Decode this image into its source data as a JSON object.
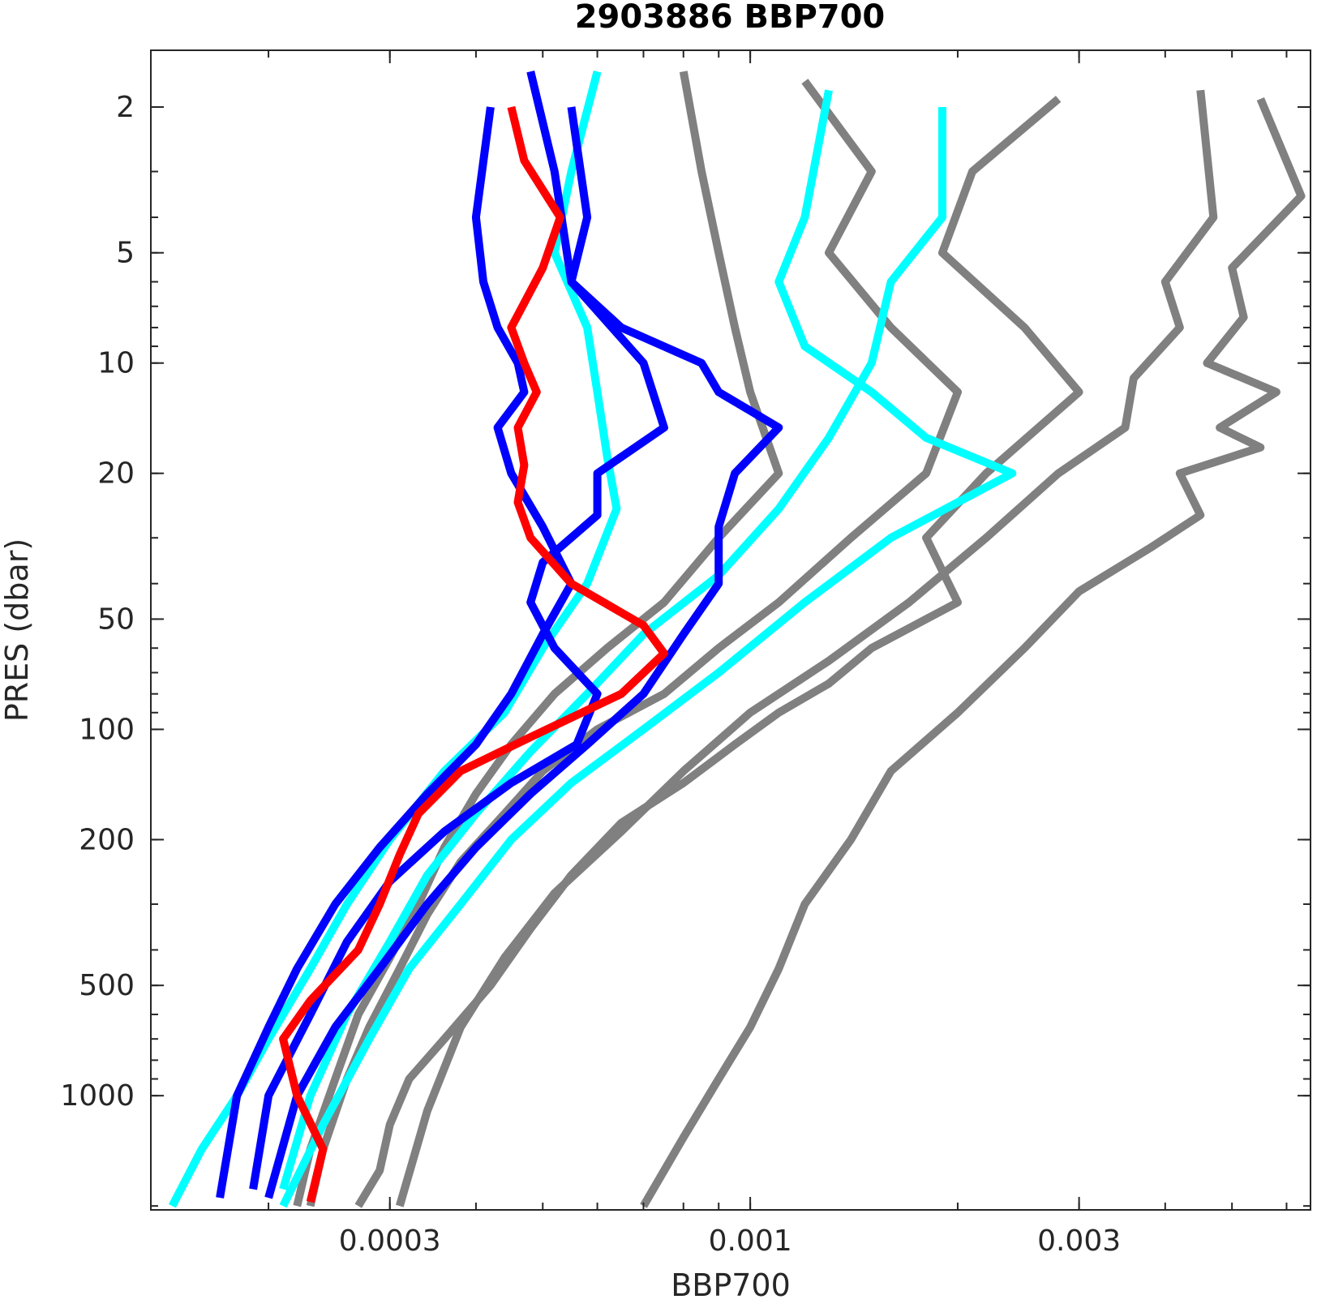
{
  "chart_data": {
    "type": "line",
    "title": "2903886 BBP700",
    "xlabel": "BBP700",
    "ylabel": "PRES (dbar)",
    "x_scale": "log",
    "y_scale": "log",
    "y_reversed": true,
    "xlim": [
      0.000135,
      0.0065
    ],
    "ylim": [
      1.4,
      2050
    ],
    "x_ticks": [
      {
        "value": 0.0003,
        "label": "0.0003"
      },
      {
        "value": 0.001,
        "label": "0.001"
      },
      {
        "value": 0.003,
        "label": "0.003"
      }
    ],
    "y_ticks": [
      {
        "value": 2,
        "label": "2"
      },
      {
        "value": 5,
        "label": "5"
      },
      {
        "value": 10,
        "label": "10"
      },
      {
        "value": 20,
        "label": "20"
      },
      {
        "value": 50,
        "label": "50"
      },
      {
        "value": 100,
        "label": "100"
      },
      {
        "value": 200,
        "label": "200"
      },
      {
        "value": 500,
        "label": "500"
      },
      {
        "value": 1000,
        "label": "1000"
      }
    ],
    "grid": false,
    "legend": "none",
    "colors": {
      "gray": "#808080",
      "cyan": "#00ffff",
      "blue": "#0000ff",
      "red": "#ff0000",
      "axes": "#262626"
    },
    "series": [
      {
        "color": "gray",
        "x": [
          0.0028,
          0.0021,
          0.0019,
          0.0025,
          0.003,
          0.0022,
          0.0018,
          0.002,
          0.0015,
          0.0013,
          0.0011,
          0.00095,
          0.0008,
          0.00065,
          0.00055,
          0.00048,
          0.00042,
          0.00036,
          0.00032,
          0.0003,
          0.00029,
          0.00027
        ],
        "y": [
          1.9,
          3,
          5,
          8,
          12,
          20,
          30,
          45,
          60,
          75,
          90,
          110,
          140,
          180,
          250,
          350,
          500,
          700,
          900,
          1200,
          1600,
          2000
        ]
      },
      {
        "color": "gray",
        "x": [
          0.0055,
          0.0063,
          0.005,
          0.0052,
          0.0046,
          0.0058,
          0.0048,
          0.0055,
          0.0042,
          0.0045,
          0.0038,
          0.003,
          0.0025,
          0.002,
          0.0016,
          0.0014,
          0.0012,
          0.0011,
          0.001,
          0.0009,
          0.0008,
          0.0007
        ],
        "y": [
          1.9,
          3.5,
          5.5,
          7.5,
          10,
          12,
          15,
          17,
          20,
          26,
          32,
          42,
          60,
          90,
          130,
          200,
          300,
          450,
          650,
          900,
          1300,
          2000
        ]
      },
      {
        "color": "gray",
        "x": [
          0.0012,
          0.0015,
          0.0013,
          0.0016,
          0.002,
          0.0018,
          0.0014,
          0.0011,
          0.0009,
          0.00075,
          0.0006,
          0.0005,
          0.00044,
          0.00038,
          0.00034,
          0.00031,
          0.00028,
          0.00026,
          0.00024,
          0.00023
        ],
        "y": [
          1.7,
          3,
          5,
          8,
          12,
          20,
          30,
          45,
          60,
          80,
          100,
          130,
          170,
          230,
          320,
          450,
          650,
          900,
          1400,
          2000
        ]
      },
      {
        "color": "gray",
        "x": [
          0.0008,
          0.00085,
          0.0009,
          0.00095,
          0.001,
          0.0011,
          0.0009,
          0.00075,
          0.00062,
          0.00052,
          0.00045,
          0.0004,
          0.00036,
          0.00033,
          0.0003,
          0.00027,
          0.00025,
          0.00023,
          0.00022
        ],
        "y": [
          1.6,
          3,
          5,
          8,
          12,
          20,
          30,
          45,
          60,
          80,
          110,
          150,
          210,
          300,
          420,
          600,
          900,
          1400,
          2000
        ]
      },
      {
        "color": "gray",
        "x": [
          0.0045,
          0.0047,
          0.004,
          0.0042,
          0.0036,
          0.0035,
          0.0028,
          0.0022,
          0.0017,
          0.0013,
          0.001,
          0.0008,
          0.00065,
          0.00052,
          0.00044,
          0.00038,
          0.00034,
          0.00031
        ],
        "y": [
          1.8,
          4,
          6,
          8,
          11,
          15,
          20,
          30,
          45,
          65,
          90,
          130,
          190,
          280,
          420,
          650,
          1100,
          2000
        ]
      },
      {
        "color": "cyan",
        "x": [
          0.0006,
          0.00055,
          0.00052,
          0.00058,
          0.0006,
          0.00062,
          0.00064,
          0.00058,
          0.0005,
          0.00044,
          0.00036,
          0.0003,
          0.00026,
          0.00023,
          0.0002,
          0.00018,
          0.00016,
          0.000145
        ],
        "y": [
          1.6,
          3,
          5,
          8,
          12,
          18,
          25,
          40,
          60,
          90,
          130,
          200,
          300,
          450,
          700,
          1000,
          1400,
          2000
        ]
      },
      {
        "color": "cyan",
        "x": [
          0.0013,
          0.0012,
          0.0011,
          0.0012,
          0.0015,
          0.0018,
          0.0024,
          0.0016,
          0.0012,
          0.0009,
          0.0007,
          0.00055,
          0.00045,
          0.00038,
          0.00032,
          0.00028,
          0.00024,
          0.00021
        ],
        "y": [
          1.8,
          4,
          6,
          9,
          12,
          16,
          20,
          30,
          45,
          70,
          100,
          140,
          200,
          300,
          450,
          700,
          1200,
          2000
        ]
      },
      {
        "color": "cyan",
        "x": [
          0.0019,
          0.0019,
          0.0016,
          0.0015,
          0.0013,
          0.0011,
          0.0009,
          0.0007,
          0.00058,
          0.00048,
          0.0004,
          0.00034,
          0.0003,
          0.00026,
          0.00023,
          0.00021
        ],
        "y": [
          2,
          4,
          6,
          10,
          16,
          25,
          38,
          55,
          80,
          115,
          170,
          250,
          380,
          600,
          1000,
          1800
        ]
      },
      {
        "color": "blue",
        "x": [
          0.00042,
          0.0004,
          0.00041,
          0.00043,
          0.00046,
          0.00047,
          0.00043,
          0.00045,
          0.0005,
          0.00055,
          0.0005,
          0.00045,
          0.0004,
          0.00034,
          0.00029,
          0.00025,
          0.00022,
          0.0002,
          0.00018,
          0.00017
        ],
        "y": [
          2,
          4,
          6,
          8,
          10,
          12,
          15,
          20,
          28,
          40,
          55,
          80,
          110,
          150,
          210,
          300,
          450,
          650,
          1000,
          1900
        ]
      },
      {
        "color": "blue",
        "x": [
          0.00055,
          0.00058,
          0.00055,
          0.00065,
          0.00085,
          0.0009,
          0.0011,
          0.00095,
          0.0009,
          0.0009,
          0.0008,
          0.0007,
          0.00058,
          0.00048,
          0.0004,
          0.00034,
          0.00029,
          0.00025,
          0.00022,
          0.0002
        ],
        "y": [
          2,
          4,
          6,
          8,
          10,
          12,
          15,
          20,
          28,
          40,
          55,
          80,
          110,
          150,
          210,
          300,
          450,
          650,
          1000,
          1900
        ]
      },
      {
        "color": "blue",
        "x": [
          0.00048,
          0.00052,
          0.00055,
          0.0007,
          0.00075,
          0.0006,
          0.0006,
          0.0005,
          0.00048,
          0.00052,
          0.0006,
          0.00056,
          0.00045,
          0.00036,
          0.0003,
          0.00026,
          0.00023,
          0.0002,
          0.00019
        ],
        "y": [
          1.6,
          3,
          6,
          10,
          15,
          20,
          26,
          35,
          45,
          60,
          80,
          110,
          140,
          190,
          260,
          380,
          600,
          1000,
          1800
        ]
      },
      {
        "color": "red",
        "x": [
          0.00045,
          0.00047,
          0.00053,
          0.0005,
          0.00045,
          0.00047,
          0.00049,
          0.00046,
          0.00047,
          0.00046,
          0.00048,
          0.00055,
          0.0007,
          0.00075,
          0.00065,
          0.00048,
          0.00038,
          0.00033,
          0.00031,
          0.00029,
          0.00027,
          0.00023,
          0.00021,
          0.00022,
          0.00024,
          0.00023
        ],
        "y": [
          2,
          2.8,
          4,
          5.5,
          8,
          10,
          12,
          15,
          19,
          24,
          30,
          40,
          52,
          62,
          80,
          105,
          130,
          170,
          220,
          300,
          400,
          550,
          700,
          1000,
          1400,
          1950
        ]
      }
    ]
  }
}
